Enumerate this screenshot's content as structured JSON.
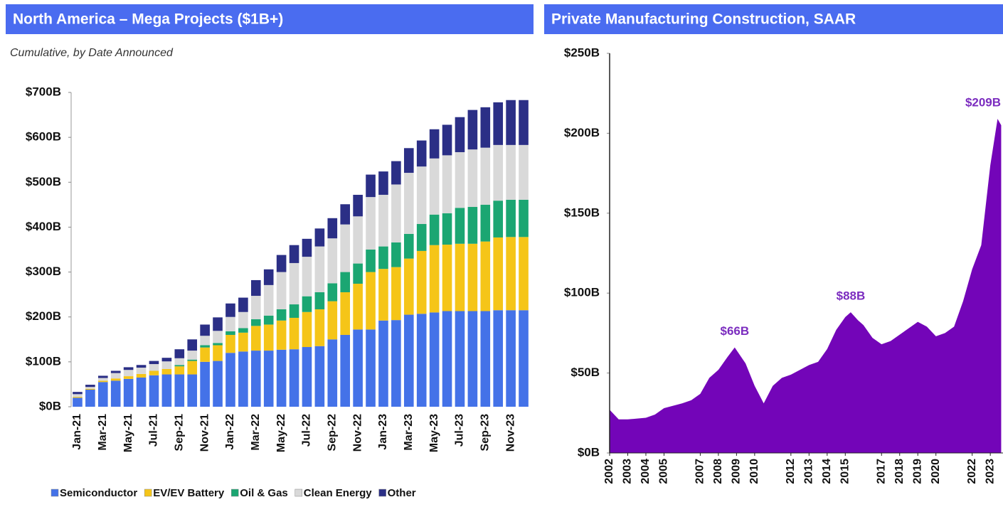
{
  "chart_data": [
    {
      "type": "stacked_bar",
      "title": "North America – Mega Projects ($1B+)",
      "subtitle": "Cumulative, by Date Announced",
      "categories": [
        "Jan-21",
        null,
        "Mar-21",
        null,
        "May-21",
        null,
        "Jul-21",
        null,
        "Sep-21",
        null,
        "Nov-21",
        null,
        "Jan-22",
        null,
        "Mar-22",
        null,
        "May-22",
        null,
        "Jul-22",
        null,
        "Sep-22",
        null,
        "Nov-22",
        null,
        "Jan-23",
        null,
        "Mar-23",
        null,
        "May-23",
        null,
        "Jul-23",
        null,
        "Sep-23",
        null,
        "Nov-23",
        null
      ],
      "series": [
        {
          "name": "Semiconductor",
          "color": "#4472e8",
          "values": [
            20,
            38,
            55,
            58,
            62,
            65,
            70,
            72,
            72,
            72,
            100,
            102,
            120,
            123,
            125,
            125,
            127,
            128,
            133,
            135,
            150,
            160,
            172,
            172,
            192,
            193,
            205,
            207,
            210,
            213,
            213,
            213,
            213,
            215,
            215,
            215
          ]
        },
        {
          "name": "EV/EV Battery",
          "color": "#f5c518",
          "values": [
            2,
            2,
            3,
            5,
            6,
            8,
            10,
            12,
            18,
            30,
            32,
            35,
            40,
            42,
            55,
            58,
            65,
            70,
            78,
            82,
            85,
            95,
            102,
            128,
            115,
            118,
            125,
            140,
            150,
            148,
            150,
            150,
            155,
            162,
            163,
            163
          ]
        },
        {
          "name": "Oil & Gas",
          "color": "#1ba672",
          "values": [
            0,
            0,
            0,
            0,
            0,
            0,
            0,
            0,
            3,
            3,
            5,
            5,
            8,
            10,
            15,
            20,
            25,
            30,
            35,
            38,
            40,
            45,
            45,
            50,
            50,
            55,
            55,
            60,
            68,
            70,
            80,
            82,
            82,
            82,
            83,
            83
          ]
        },
        {
          "name": "Clean Energy",
          "color": "#d9d9d9",
          "values": [
            6,
            4,
            6,
            12,
            14,
            14,
            15,
            17,
            15,
            20,
            21,
            27,
            32,
            36,
            52,
            68,
            83,
            92,
            88,
            102,
            100,
            106,
            105,
            117,
            115,
            129,
            136,
            128,
            125,
            129,
            124,
            128,
            127,
            124,
            122,
            122
          ]
        },
        {
          "name": "Other",
          "color": "#2b2f86",
          "values": [
            5,
            5,
            5,
            5,
            6,
            6,
            7,
            8,
            20,
            25,
            25,
            30,
            30,
            32,
            35,
            35,
            38,
            40,
            40,
            40,
            45,
            45,
            48,
            50,
            52,
            52,
            55,
            58,
            65,
            68,
            78,
            88,
            90,
            95,
            100,
            100
          ]
        }
      ],
      "ylim": [
        0,
        700
      ],
      "yticks": [
        {
          "value": 0,
          "label": "$0B"
        },
        {
          "value": 100,
          "label": "$100B"
        },
        {
          "value": 200,
          "label": "$200B"
        },
        {
          "value": 300,
          "label": "$300B"
        },
        {
          "value": 400,
          "label": "$400B"
        },
        {
          "value": 500,
          "label": "$500B"
        },
        {
          "value": 600,
          "label": "$600B"
        },
        {
          "value": 700,
          "label": "$700B"
        }
      ],
      "legend": "bottom"
    },
    {
      "type": "area",
      "title": "Private Manufacturing Construction, SAAR",
      "x": [
        2002.0,
        2002.5,
        2003.0,
        2004.0,
        2004.5,
        2005.0,
        2006.0,
        2006.5,
        2007.0,
        2007.5,
        2008.0,
        2008.5,
        2008.9,
        2009.5,
        2010.0,
        2010.5,
        2011.0,
        2011.5,
        2012.0,
        2012.5,
        2013.0,
        2013.5,
        2014.0,
        2014.5,
        2015.0,
        2015.3,
        2015.7,
        2016.0,
        2016.5,
        2017.0,
        2017.5,
        2018.0,
        2018.5,
        2019.0,
        2019.5,
        2020.0,
        2020.5,
        2021.0,
        2021.5,
        2022.0,
        2022.5,
        2023.0,
        2023.4,
        2023.6
      ],
      "values": [
        27,
        21,
        21,
        22,
        24,
        28,
        31,
        33,
        37,
        47,
        52,
        60,
        66,
        56,
        42,
        31,
        42,
        47,
        49,
        52,
        55,
        57,
        65,
        77,
        85,
        88,
        83,
        80,
        72,
        68,
        70,
        74,
        78,
        82,
        79,
        73,
        75,
        79,
        95,
        115,
        130,
        180,
        209,
        205
      ],
      "color": "#7305b8",
      "xlim": [
        2002,
        2023.7
      ],
      "xticks": [
        2002,
        2003,
        2004,
        2005,
        2007,
        2008,
        2009,
        2010,
        2012,
        2013,
        2014,
        2015,
        2017,
        2018,
        2019,
        2020,
        2022,
        2023
      ],
      "ylim": [
        0,
        250
      ],
      "yticks": [
        {
          "value": 0,
          "label": "$0B"
        },
        {
          "value": 50,
          "label": "$50B"
        },
        {
          "value": 100,
          "label": "$100B"
        },
        {
          "value": 150,
          "label": "$150B"
        },
        {
          "value": 200,
          "label": "$200B"
        },
        {
          "value": 250,
          "label": "$250B"
        }
      ],
      "annotations": [
        {
          "label": "$66B",
          "x": 2008.9,
          "y": 66
        },
        {
          "label": "$88B",
          "x": 2015.3,
          "y": 88
        },
        {
          "label": "$209B",
          "x": 2023.4,
          "y": 209
        }
      ]
    }
  ]
}
